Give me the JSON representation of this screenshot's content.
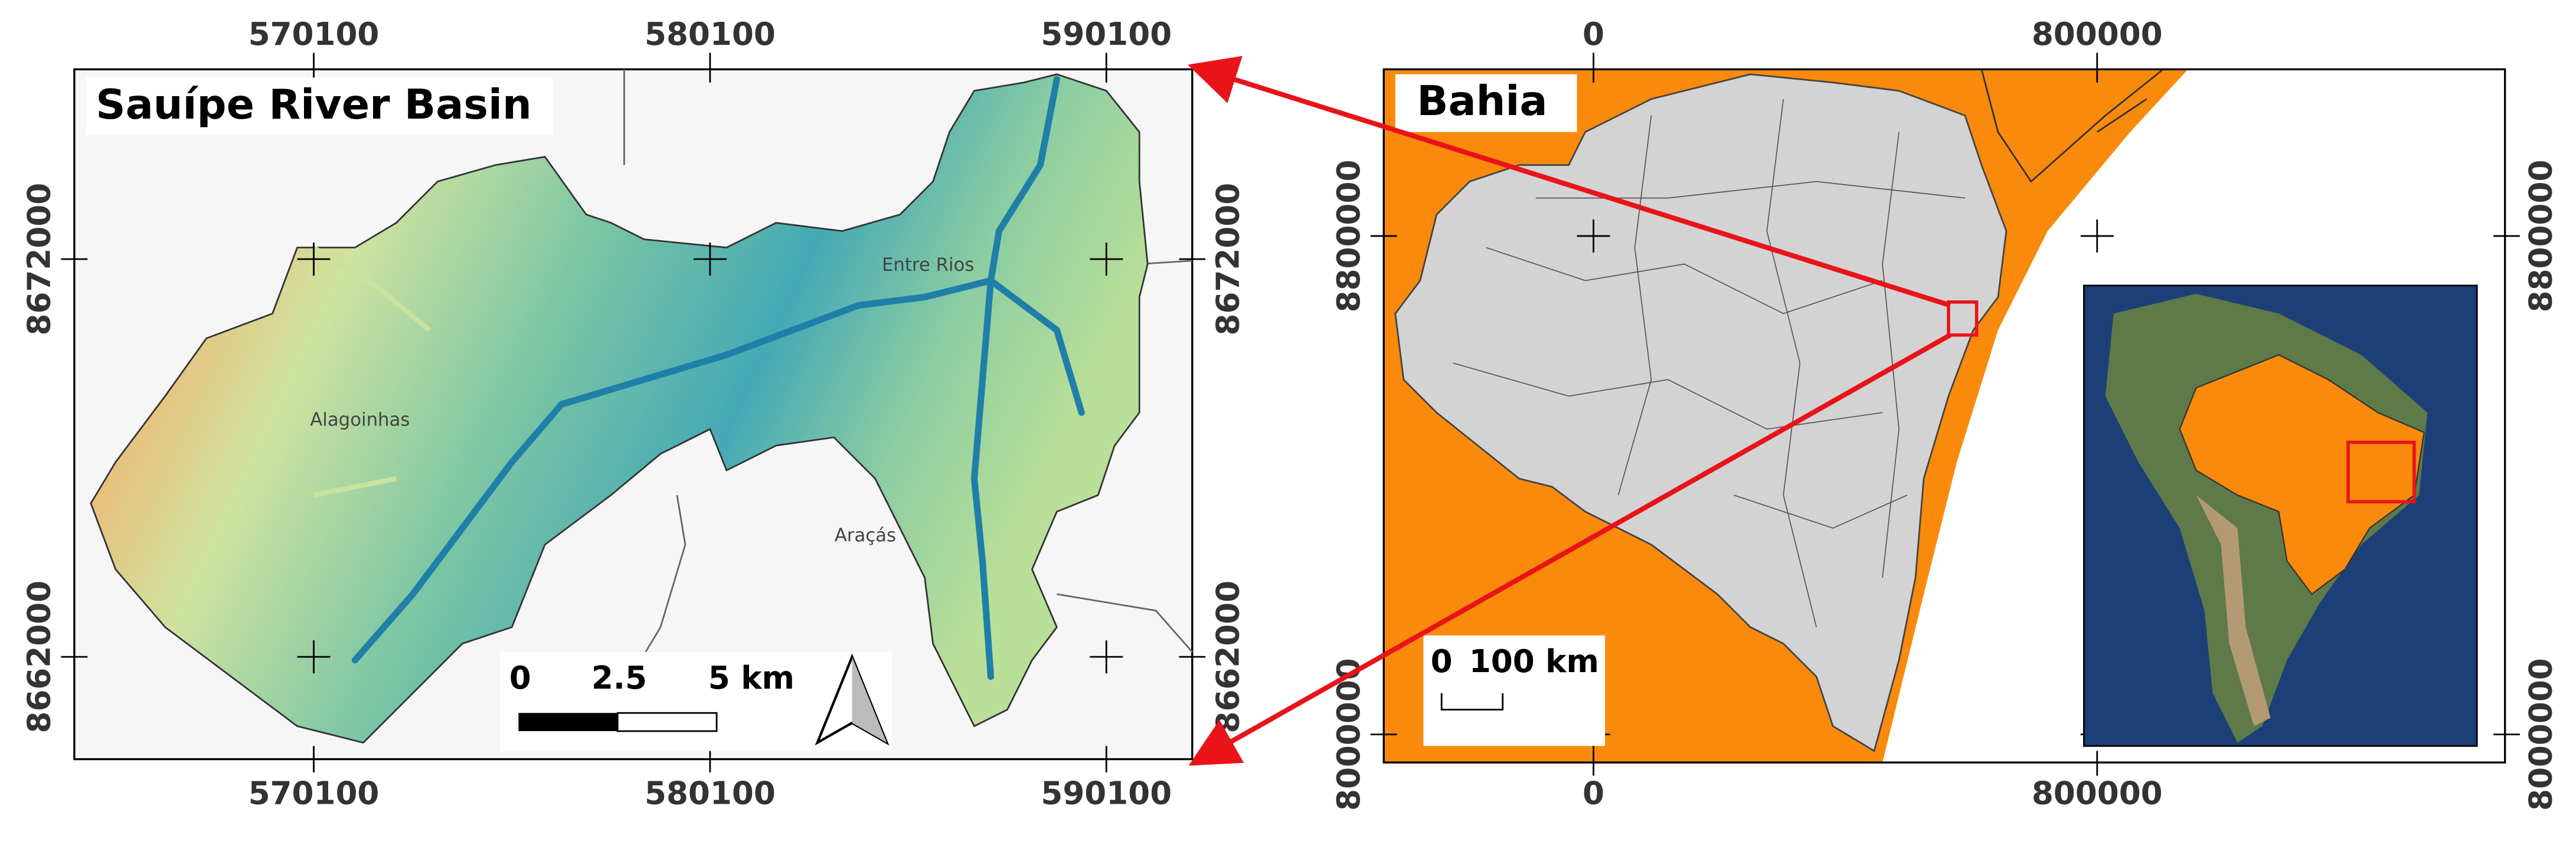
{
  "left_map": {
    "title": "Sauípe River Basin",
    "x_labels": [
      "570100",
      "580100",
      "590100"
    ],
    "y_labels": [
      "8672000",
      "8662000"
    ],
    "places": [
      "Entre Rios",
      "Alagoinhas",
      "Araçás"
    ],
    "scale_bar": [
      "0",
      "2.5",
      "5 km"
    ]
  },
  "right_map": {
    "title": "Bahia",
    "x_labels": [
      "0",
      "800000"
    ],
    "y_labels": [
      "8800000",
      "8000000"
    ],
    "scale_bar": [
      "0",
      "100 km"
    ]
  }
}
